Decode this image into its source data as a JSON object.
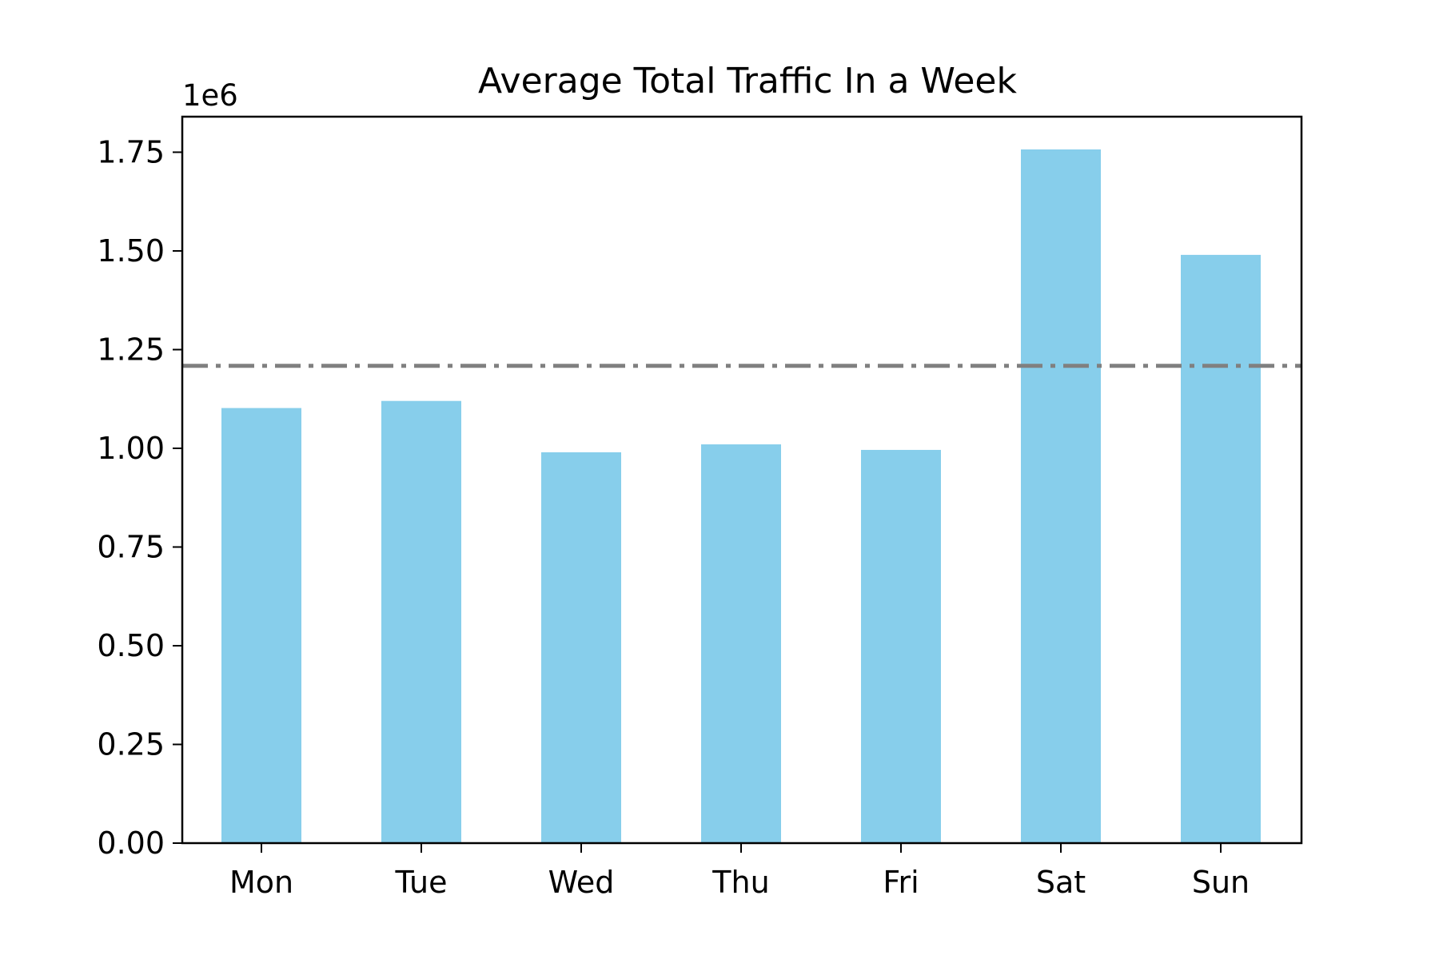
{
  "chart_data": {
    "type": "bar",
    "title": "Average Total Traffic In a Week",
    "xlabel": "",
    "ylabel": "",
    "y_offset_label": "1e6",
    "y_scale_factor": 1000000,
    "categories": [
      "Mon",
      "Tue",
      "Wed",
      "Thu",
      "Fri",
      "Sat",
      "Sun"
    ],
    "values": [
      1102000,
      1120000,
      990000,
      1010000,
      996000,
      1757000,
      1490000
    ],
    "ylim": [
      0,
      1840000
    ],
    "yticks": [
      0,
      250000,
      500000,
      750000,
      1000000,
      1250000,
      1500000,
      1750000
    ],
    "ytick_labels": [
      "0.00",
      "0.25",
      "0.50",
      "0.75",
      "1.00",
      "1.25",
      "1.50",
      "1.75"
    ],
    "reference_line": {
      "value": 1209000,
      "style": "dash-dot",
      "color": "#808080"
    },
    "bar_color": "#87ceeb",
    "grid": false,
    "legend": "none"
  }
}
